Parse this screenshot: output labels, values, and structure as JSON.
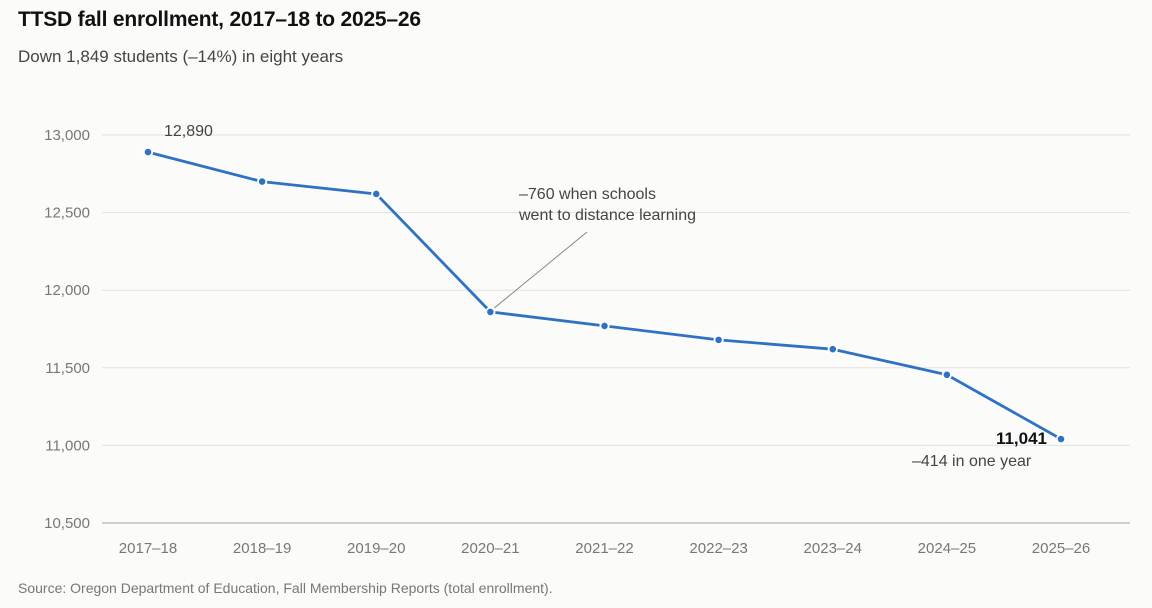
{
  "chart_data": {
    "type": "line",
    "title": "TTSD fall enrollment, 2017–18 to 2025–26",
    "subtitle": "Down 1,849 students (–14%) in eight years",
    "source": "Source: Oregon Department of Education, Fall Membership Reports (total enrollment).",
    "xlabel": "",
    "ylabel": "",
    "categories": [
      "2017–18",
      "2018–19",
      "2019–20",
      "2020–21",
      "2021–22",
      "2022–23",
      "2023–24",
      "2024–25",
      "2025–26"
    ],
    "series": [
      {
        "values": [
          12890,
          12700,
          12620,
          11860,
          11770,
          11680,
          11620,
          11455,
          11041
        ]
      }
    ],
    "ylim": [
      10500,
      13000
    ],
    "yticks": [
      10500,
      11000,
      11500,
      12000,
      12500,
      13000
    ],
    "ytick_labels": [
      "10,500",
      "11,000",
      "11,500",
      "12,000",
      "12,500",
      "13,000"
    ],
    "grid": true,
    "legend": "none",
    "color": "#2f72c4",
    "annotations": {
      "start_value": "12,890",
      "covid_line1": "–760 when schools",
      "covid_line2": "went to distance learning",
      "end_value": "11,041",
      "end_note": "–414 in one year"
    }
  }
}
